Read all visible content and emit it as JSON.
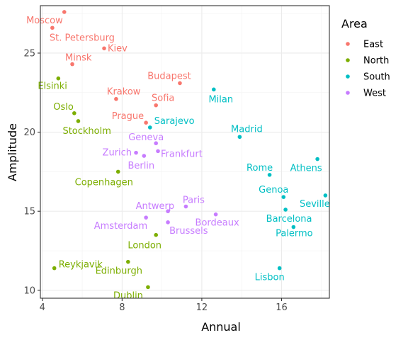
{
  "chart_data": {
    "type": "scatter",
    "xlabel": "Annual",
    "ylabel": "Amplitude",
    "xlim": [
      3.9,
      18.4
    ],
    "ylim": [
      9.5,
      28.0
    ],
    "xticks": [
      4,
      8,
      12,
      16
    ],
    "yticks": [
      10,
      15,
      20,
      25
    ],
    "grid": true,
    "legend": {
      "title": "Area",
      "placement": "top-right",
      "entries": [
        {
          "name": "East",
          "color": "#F8766D"
        },
        {
          "name": "North",
          "color": "#7CAE00"
        },
        {
          "name": "South",
          "color": "#00BFC4"
        },
        {
          "name": "West",
          "color": "#C77CFF"
        }
      ]
    },
    "points": [
      {
        "label": "Moscow",
        "area": "East",
        "x": 5.1,
        "y": 27.6,
        "anchor": "end",
        "dx": -2,
        "dy": 16
      },
      {
        "label": "St. Petersburg",
        "area": "East",
        "x": 4.5,
        "y": 26.6,
        "anchor": "start",
        "dx": -4,
        "dy": 18
      },
      {
        "label": "Kiev",
        "area": "East",
        "x": 7.1,
        "y": 25.3,
        "anchor": "start",
        "dx": 5,
        "dy": 4
      },
      {
        "label": "Minsk",
        "area": "East",
        "x": 5.5,
        "y": 24.3,
        "anchor": "start",
        "dx": -10,
        "dy": -5
      },
      {
        "label": "Budapest",
        "area": "East",
        "x": 10.9,
        "y": 23.1,
        "anchor": "middle",
        "dx": -15,
        "dy": -6
      },
      {
        "label": "Krakow",
        "area": "East",
        "x": 7.7,
        "y": 22.1,
        "anchor": "start",
        "dx": -13,
        "dy": -6
      },
      {
        "label": "Sofia",
        "area": "East",
        "x": 9.7,
        "y": 21.7,
        "anchor": "middle",
        "dx": 10,
        "dy": -6
      },
      {
        "label": "Prague",
        "area": "East",
        "x": 9.2,
        "y": 20.6,
        "anchor": "end",
        "dx": -3,
        "dy": -5
      },
      {
        "label": "Elsinki",
        "area": "North",
        "x": 4.8,
        "y": 23.4,
        "anchor": "start",
        "dx": -29,
        "dy": 15
      },
      {
        "label": "Oslo",
        "area": "North",
        "x": 5.6,
        "y": 21.2,
        "anchor": "end",
        "dx": -1,
        "dy": -5
      },
      {
        "label": "Stockholm",
        "area": "North",
        "x": 5.8,
        "y": 20.7,
        "anchor": "start",
        "dx": -22,
        "dy": 18
      },
      {
        "label": "Copenhagen",
        "area": "North",
        "x": 7.8,
        "y": 17.5,
        "anchor": "middle",
        "dx": -20,
        "dy": 19
      },
      {
        "label": "London",
        "area": "North",
        "x": 9.7,
        "y": 13.5,
        "anchor": "middle",
        "dx": -16,
        "dy": 19
      },
      {
        "label": "Reykjavik",
        "area": "North",
        "x": 4.6,
        "y": 11.4,
        "anchor": "start",
        "dx": 6,
        "dy": -1
      },
      {
        "label": "Edinburgh",
        "area": "North",
        "x": 8.3,
        "y": 11.8,
        "anchor": "middle",
        "dx": -13,
        "dy": 17
      },
      {
        "label": "Dublin",
        "area": "North",
        "x": 9.3,
        "y": 10.2,
        "anchor": "middle",
        "dx": -28,
        "dy": 16
      },
      {
        "label": "Milan",
        "area": "South",
        "x": 12.6,
        "y": 22.7,
        "anchor": "middle",
        "dx": 10,
        "dy": 18
      },
      {
        "label": "Sarajevo",
        "area": "South",
        "x": 9.4,
        "y": 20.3,
        "anchor": "start",
        "dx": 6,
        "dy": -5
      },
      {
        "label": "Madrid",
        "area": "South",
        "x": 13.9,
        "y": 19.7,
        "anchor": "middle",
        "dx": 10,
        "dy": -7
      },
      {
        "label": "Athens",
        "area": "South",
        "x": 17.8,
        "y": 18.3,
        "anchor": "middle",
        "dx": -16,
        "dy": 17
      },
      {
        "label": "Rome",
        "area": "South",
        "x": 15.4,
        "y": 17.3,
        "anchor": "middle",
        "dx": -14,
        "dy": -6
      },
      {
        "label": "Genoa",
        "area": "South",
        "x": 16.1,
        "y": 15.9,
        "anchor": "middle",
        "dx": -14,
        "dy": -6
      },
      {
        "label": "Seville",
        "area": "South",
        "x": 18.2,
        "y": 16.0,
        "anchor": "middle",
        "dx": -15,
        "dy": 16
      },
      {
        "label": "Barcelona",
        "area": "South",
        "x": 16.2,
        "y": 15.1,
        "anchor": "middle",
        "dx": 5,
        "dy": 17
      },
      {
        "label": "Palermo",
        "area": "South",
        "x": 16.6,
        "y": 14.0,
        "anchor": "middle",
        "dx": 1,
        "dy": 13
      },
      {
        "label": "Lisbon",
        "area": "South",
        "x": 15.9,
        "y": 11.4,
        "anchor": "middle",
        "dx": -14,
        "dy": 17
      },
      {
        "label": "Zurich",
        "area": "West",
        "x": 8.7,
        "y": 18.7,
        "anchor": "end",
        "dx": -6,
        "dy": 4
      },
      {
        "label": "Geneva",
        "area": "West",
        "x": 9.7,
        "y": 19.3,
        "anchor": "middle",
        "dx": -14,
        "dy": -4
      },
      {
        "label": "Frankfurt",
        "area": "West",
        "x": 9.8,
        "y": 18.8,
        "anchor": "start",
        "dx": 4,
        "dy": 8
      },
      {
        "label": "Berlin",
        "area": "West",
        "x": 9.1,
        "y": 18.5,
        "anchor": "middle",
        "dx": -4,
        "dy": 18
      },
      {
        "label": "Paris",
        "area": "West",
        "x": 11.2,
        "y": 15.3,
        "anchor": "middle",
        "dx": 11,
        "dy": -5
      },
      {
        "label": "Antwerp",
        "area": "West",
        "x": 10.3,
        "y": 15.0,
        "anchor": "end",
        "dx": 9,
        "dy": -3
      },
      {
        "label": "Amsterdam",
        "area": "West",
        "x": 9.2,
        "y": 14.6,
        "anchor": "end",
        "dx": 2,
        "dy": 16
      },
      {
        "label": "Brussels",
        "area": "West",
        "x": 10.3,
        "y": 14.3,
        "anchor": "start",
        "dx": 2,
        "dy": 16
      },
      {
        "label": "Bordeaux",
        "area": "West",
        "x": 12.7,
        "y": 14.8,
        "anchor": "middle",
        "dx": 2,
        "dy": 16
      }
    ]
  }
}
